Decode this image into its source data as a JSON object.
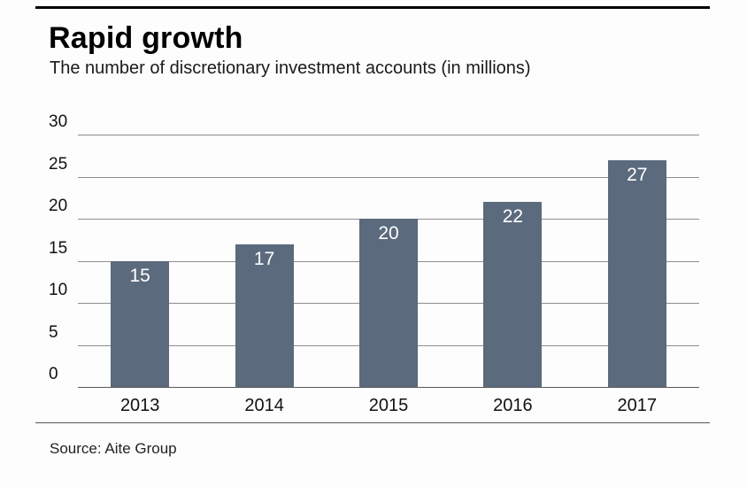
{
  "header": {
    "title": "Rapid growth",
    "subtitle": "The number of discretionary investment accounts (in millions)"
  },
  "source": {
    "label": "Source: Aite Group"
  },
  "chart_data": {
    "type": "bar",
    "title": "Rapid growth",
    "subtitle": "The number of discretionary investment accounts (in millions)",
    "categories": [
      "2013",
      "2014",
      "2015",
      "2016",
      "2017"
    ],
    "values": [
      15,
      17,
      20,
      22,
      27
    ],
    "xlabel": "",
    "ylabel": "",
    "ylim": [
      0,
      30
    ],
    "yticks": [
      0,
      5,
      10,
      15,
      20,
      25,
      30
    ],
    "grid": true,
    "legend": false,
    "bar_color": "#5b6a7d",
    "value_label_color": "#ffffff",
    "source": "Source: Aite Group"
  }
}
